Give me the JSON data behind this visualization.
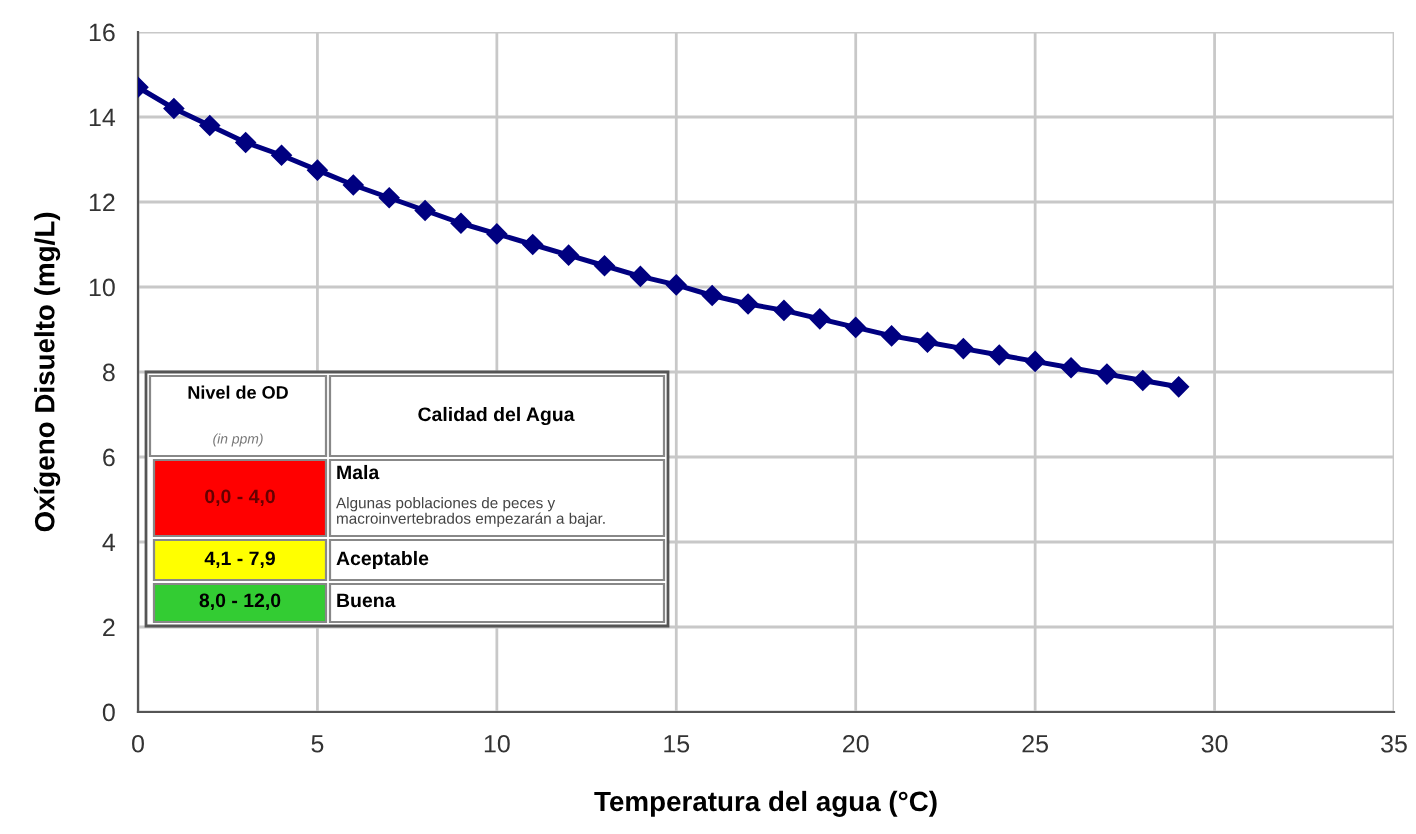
{
  "chart_data": {
    "type": "line",
    "xlabel": "Temperatura del agua (°C)",
    "ylabel": "Oxígeno Disuelto (mg/L)",
    "x": [
      0,
      1,
      2,
      3,
      4,
      5,
      6,
      7,
      8,
      9,
      10,
      11,
      12,
      13,
      14,
      15,
      16,
      17,
      18,
      19,
      20,
      21,
      22,
      23,
      24,
      25,
      26,
      27,
      28,
      29
    ],
    "series": [
      {
        "color": "#000080",
        "values": [
          14.7,
          14.2,
          13.8,
          13.4,
          13.1,
          12.75,
          12.4,
          12.1,
          11.8,
          11.5,
          11.25,
          11.0,
          10.75,
          10.5,
          10.25,
          10.05,
          9.8,
          9.6,
          9.45,
          9.25,
          9.05,
          8.85,
          8.7,
          8.55,
          8.4,
          8.25,
          8.1,
          7.95,
          7.8,
          7.65
        ]
      }
    ],
    "xlim": [
      0,
      35
    ],
    "xticks": [
      0,
      5,
      10,
      15,
      20,
      25,
      30,
      35
    ],
    "ylim": [
      0,
      16
    ],
    "yticks": [
      0,
      2,
      4,
      6,
      8,
      10,
      12,
      14,
      16
    ],
    "grid": true,
    "marker": "diamond",
    "line_style": "solid",
    "annotations": [
      "Nivel de OD",
      "(in ppm)",
      "Calidad del Agua",
      "0,0 - 4,0",
      "Mala",
      "Algunas poblaciones de peces y\nmacroinvertebrados empezarán a bajar.",
      "4,1 - 7,9",
      "Aceptable",
      "8,0 - 12,0",
      "Buena"
    ]
  }
}
